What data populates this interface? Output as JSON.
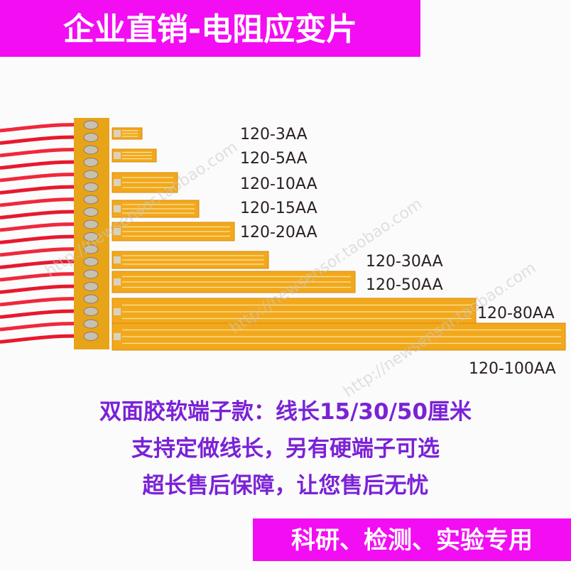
{
  "header": {
    "title": "企业直销-电阻应变片"
  },
  "labels": [
    "120-3AA",
    "120-5AA",
    "120-10AA",
    "120-15AA",
    "120-20AA",
    "120-30AA",
    "120-50AA",
    "120-80AA",
    "120-100AA"
  ],
  "description": [
    "双面胶软端子款：线长15/30/50厘米",
    "支持定做线长，另有硬端子可选",
    "超长售后保障，让您售后无忧"
  ],
  "footer": {
    "text": "科研、检测、实验专用"
  },
  "watermarks": [
    "http://newsensor.taobao.com",
    "http://newsensor.taobao.com",
    "http://newsensor.taobao.com"
  ]
}
